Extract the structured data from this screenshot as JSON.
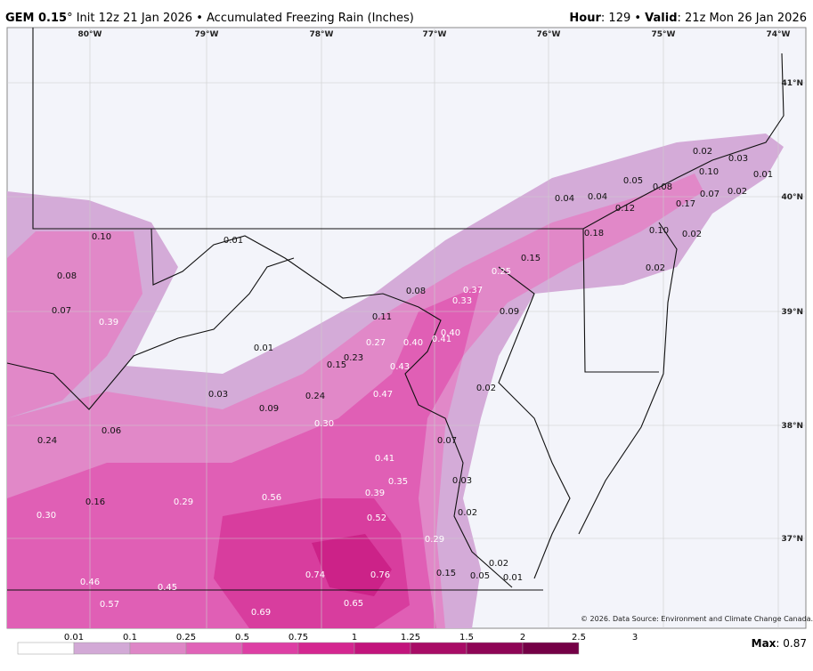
{
  "header": {
    "model": "GEM 0.15",
    "subtitle": "° Init 12z 21 Jan 2026 • Accumulated Freezing Rain (Inches)",
    "hour_label": "Hour",
    "hour_value": ": 129 • ",
    "valid_label": "Valid",
    "valid_value": ": 21z Mon 26 Jan 2026"
  },
  "map": {
    "longitudes": [
      "80°W",
      "79°W",
      "78°W",
      "77°W",
      "76°W",
      "75°W",
      "74°W"
    ],
    "latitudes": [
      "41°N",
      "40°N",
      "39°N",
      "38°N",
      "37°N"
    ],
    "values": [
      "0.02",
      "0.03",
      "0.10",
      "0.01",
      "0.05",
      "0.08",
      "0.04",
      "0.04",
      "0.07",
      "0.02",
      "0.17",
      "0.12",
      "0.18",
      "0.10",
      "0.02",
      "0.10",
      "0.01",
      "0.15",
      "0.25",
      "0.02",
      "0.08",
      "0.08",
      "0.37",
      "0.33",
      "0.07",
      "0.09",
      "0.11",
      "0.39",
      "0.40",
      "0.41",
      "0.27",
      "0.40",
      "0.01",
      "0.23",
      "0.15",
      "0.43",
      "0.02",
      "0.47",
      "0.03",
      "0.24",
      "0.09",
      "0.30",
      "0.06",
      "0.24",
      "0.07",
      "0.41",
      "0.35",
      "0.03",
      "0.39",
      "0.56",
      "0.16",
      "0.29",
      "0.02",
      "0.30",
      "0.52",
      "0.29",
      "0.02",
      "0.15",
      "0.74",
      "0.76",
      "0.05",
      "0.01",
      "0.46",
      "0.45",
      "0.57",
      "0.65",
      "0.69"
    ],
    "credit": "© 2026. Data Source: Environment and Climate Change Canada."
  },
  "colorbar": {
    "ticks": [
      "0.01",
      "0.1",
      "0.25",
      "0.5",
      "0.75",
      "1",
      "1.25",
      "1.5",
      "2",
      "2.5",
      "3"
    ],
    "colors": [
      "#ffffff",
      "#d2a9d6",
      "#de86c6",
      "#e063b8",
      "#dd3fa4",
      "#d42690",
      "#c2147c",
      "#a80c66",
      "#8e0556",
      "#740046"
    ],
    "max_label": "Max",
    "max_value": ": 0.87"
  }
}
